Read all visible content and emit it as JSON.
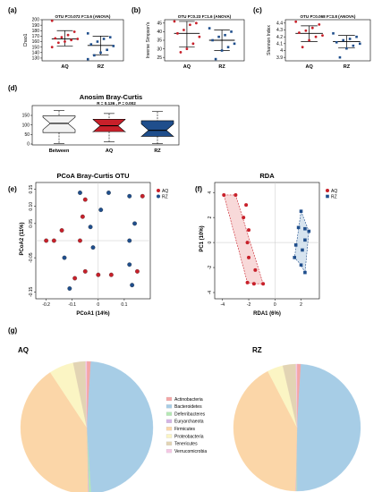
{
  "figure": {
    "panel_labels": [
      "(a)",
      "(b)",
      "(c)",
      "(d)",
      "(e)",
      "(f)",
      "(g)"
    ]
  },
  "colors": {
    "AQ": "#c8202a",
    "RZ": "#1f4e8c",
    "Between": "#f2f2f2"
  },
  "chart_data": [
    {
      "id": "a",
      "type": "scatter",
      "stat": "OTU P=0.072 F=3.6 (ANOVA)",
      "ylabel": "Chao1",
      "ylim": [
        125,
        200
      ],
      "yticks": [
        130,
        140,
        150,
        160,
        170,
        180,
        190,
        200
      ],
      "categories": [
        "AQ",
        "RZ"
      ],
      "series": [
        {
          "name": "AQ",
          "mean": 165,
          "sd": [
            152,
            180
          ],
          "points": [
            198,
            178,
            172,
            168,
            166,
            165,
            163,
            160,
            158,
            150
          ]
        },
        {
          "name": "RZ",
          "mean": 153,
          "sd": [
            136,
            170
          ],
          "points": [
            175,
            168,
            165,
            160,
            155,
            152,
            145,
            140,
            135,
            128
          ]
        }
      ]
    },
    {
      "id": "b",
      "type": "scatter",
      "stat": "OTU P=0.23 F=1.6 (ANOVA)",
      "ylabel": "Inverse Simpson's",
      "ylim": [
        23,
        47
      ],
      "yticks": [
        25,
        30,
        35,
        40,
        45
      ],
      "categories": [
        "AQ",
        "RZ"
      ],
      "series": [
        {
          "name": "AQ",
          "mean": 39,
          "sd": [
            31,
            46
          ],
          "points": [
            46,
            45,
            44,
            41,
            39,
            37,
            33,
            30,
            28
          ]
        },
        {
          "name": "RZ",
          "mean": 35,
          "sd": [
            29,
            41
          ],
          "points": [
            42,
            40,
            38,
            37,
            35,
            33,
            31,
            29,
            24
          ]
        }
      ]
    },
    {
      "id": "c",
      "type": "scatter",
      "stat": "OTU P=0.068 F=3.8 (ANOVA)",
      "ylabel": "Shannon Index",
      "ylim": [
        3.85,
        4.45
      ],
      "yticks": [
        3.9,
        4.0,
        4.1,
        4.2,
        4.3,
        4.4
      ],
      "categories": [
        "AQ",
        "RZ"
      ],
      "series": [
        {
          "name": "AQ",
          "mean": 4.25,
          "sd": [
            4.13,
            4.36
          ],
          "points": [
            4.42,
            4.38,
            4.33,
            4.29,
            4.26,
            4.22,
            4.2,
            4.15,
            4.05
          ]
        },
        {
          "name": "RZ",
          "mean": 4.13,
          "sd": [
            4.04,
            4.22
          ],
          "points": [
            4.25,
            4.2,
            4.17,
            4.15,
            4.12,
            4.1,
            4.07,
            4.03,
            3.9
          ]
        }
      ]
    },
    {
      "id": "d",
      "type": "box",
      "title": "Anosim Bray-Curtis",
      "stat": "R = 0.136 , P = 0.002",
      "ylim": [
        0,
        150
      ],
      "yticks": [
        0,
        50,
        100,
        150
      ],
      "categories": [
        "Between",
        "AQ",
        "RZ"
      ],
      "boxes": [
        {
          "name": "Between",
          "min": 3,
          "q1": 60,
          "median": 108,
          "q3": 148,
          "max": 175
        },
        {
          "name": "AQ",
          "min": 12,
          "q1": 65,
          "median": 96,
          "q3": 130,
          "max": 160
        },
        {
          "name": "RZ",
          "min": 2,
          "q1": 40,
          "median": 72,
          "q3": 122,
          "max": 170
        }
      ]
    },
    {
      "id": "e",
      "type": "scatter",
      "title": "PCoA Bray-Curtis OTU",
      "xlabel": "PCoA1 (14%)",
      "ylabel": "PCoA2 (11%)",
      "xlim": [
        -0.24,
        0.2
      ],
      "ylim": [
        -0.17,
        0.17
      ],
      "xticks": [
        -0.2,
        -0.1,
        0.0,
        0.1
      ],
      "xtick_labels": [
        "-0.2",
        "-0.1",
        "0",
        "0.1"
      ],
      "yticks": [
        0.15,
        0.1,
        0.05,
        -0.05,
        -0.15
      ],
      "yticklabels": [
        "0.15",
        "0.10",
        "0.05",
        "-0.05",
        "-0.15"
      ],
      "legend": [
        "AQ",
        "RZ"
      ],
      "series": [
        {
          "name": "AQ",
          "points": [
            [
              0.17,
              0.13
            ],
            [
              -0.05,
              0.12
            ],
            [
              -0.06,
              0.07
            ],
            [
              -0.14,
              0.03
            ],
            [
              -0.2,
              0.0
            ],
            [
              -0.17,
              0.0
            ],
            [
              -0.07,
              0.0
            ],
            [
              -0.05,
              -0.09
            ],
            [
              -0.09,
              -0.11
            ],
            [
              0.0,
              -0.1
            ],
            [
              0.05,
              -0.1
            ],
            [
              0.15,
              -0.09
            ]
          ]
        },
        {
          "name": "RZ",
          "points": [
            [
              -0.07,
              0.14
            ],
            [
              0.04,
              0.14
            ],
            [
              0.12,
              0.13
            ],
            [
              0.01,
              0.09
            ],
            [
              0.14,
              0.05
            ],
            [
              -0.03,
              0.04
            ],
            [
              -0.02,
              -0.02
            ],
            [
              0.12,
              0.0
            ],
            [
              -0.13,
              -0.05
            ],
            [
              0.12,
              -0.07
            ],
            [
              -0.11,
              -0.14
            ],
            [
              0.13,
              -0.13
            ]
          ]
        }
      ]
    },
    {
      "id": "f",
      "type": "scatter",
      "title": "RDA",
      "xlabel": "RDA1 (6%)",
      "ylabel": "PC1 (10%)",
      "xlim": [
        -4.6,
        3.4
      ],
      "ylim": [
        -4.5,
        4.8
      ],
      "xticks": [
        -4,
        -2,
        0,
        2
      ],
      "yticks": [
        4,
        2,
        0,
        -2,
        -4
      ],
      "legend": [
        "AQ",
        "RZ"
      ],
      "series": [
        {
          "name": "AQ",
          "points": [
            [
              -3.9,
              3.8
            ],
            [
              -3.0,
              3.8
            ],
            [
              -2.2,
              3.0
            ],
            [
              -2.4,
              2.0
            ],
            [
              -2.0,
              1.0
            ],
            [
              -2.1,
              0.0
            ],
            [
              -2.0,
              -1.2
            ],
            [
              -1.5,
              -2.2
            ],
            [
              -1.6,
              -3.3
            ],
            [
              -0.9,
              -3.3
            ],
            [
              -2.1,
              -3.2
            ]
          ]
        },
        {
          "name": "RZ",
          "points": [
            [
              2.0,
              2.5
            ],
            [
              1.8,
              1.2
            ],
            [
              2.3,
              1.1
            ],
            [
              2.6,
              0.9
            ],
            [
              2.3,
              0.2
            ],
            [
              1.6,
              -0.2
            ],
            [
              2.1,
              -0.6
            ],
            [
              1.5,
              -1.2
            ],
            [
              2.0,
              -1.8
            ],
            [
              2.3,
              -2.4
            ]
          ]
        }
      ],
      "hulls": [
        {
          "name": "AQ",
          "points": [
            [
              -3.9,
              3.8
            ],
            [
              -3.0,
              3.8
            ],
            [
              -0.9,
              -3.3
            ],
            [
              -1.6,
              -3.3
            ],
            [
              -2.1,
              -3.2
            ]
          ]
        },
        {
          "name": "RZ",
          "points": [
            [
              2.0,
              2.5
            ],
            [
              2.6,
              0.9
            ],
            [
              2.3,
              -2.4
            ],
            [
              2.0,
              -1.8
            ],
            [
              1.5,
              -1.2
            ]
          ]
        }
      ]
    },
    {
      "id": "g",
      "type": "pie",
      "legend": [
        "Actinobacteria",
        "Bacteroidetes",
        "Deferribacteres",
        "Euryarchaeota",
        "Firmicutes",
        "Proteobacteria",
        "Tenericutes",
        "Verrucomicrobia"
      ],
      "legend_colors": [
        "#f4a6a6",
        "#a7cde6",
        "#b4e8b4",
        "#d4b4e4",
        "#fbd6a8",
        "#fbf5c4",
        "#e2d4b4",
        "#f4c8e4"
      ],
      "pies": [
        {
          "name": "AQ",
          "values": [
            1.0,
            48.0,
            0.5,
            0.2,
            41.0,
            6.0,
            3.0,
            0.3
          ]
        },
        {
          "name": "RZ",
          "values": [
            1.0,
            49.0,
            0.2,
            0.2,
            42.0,
            4.0,
            3.3,
            0.3
          ]
        }
      ]
    }
  ]
}
